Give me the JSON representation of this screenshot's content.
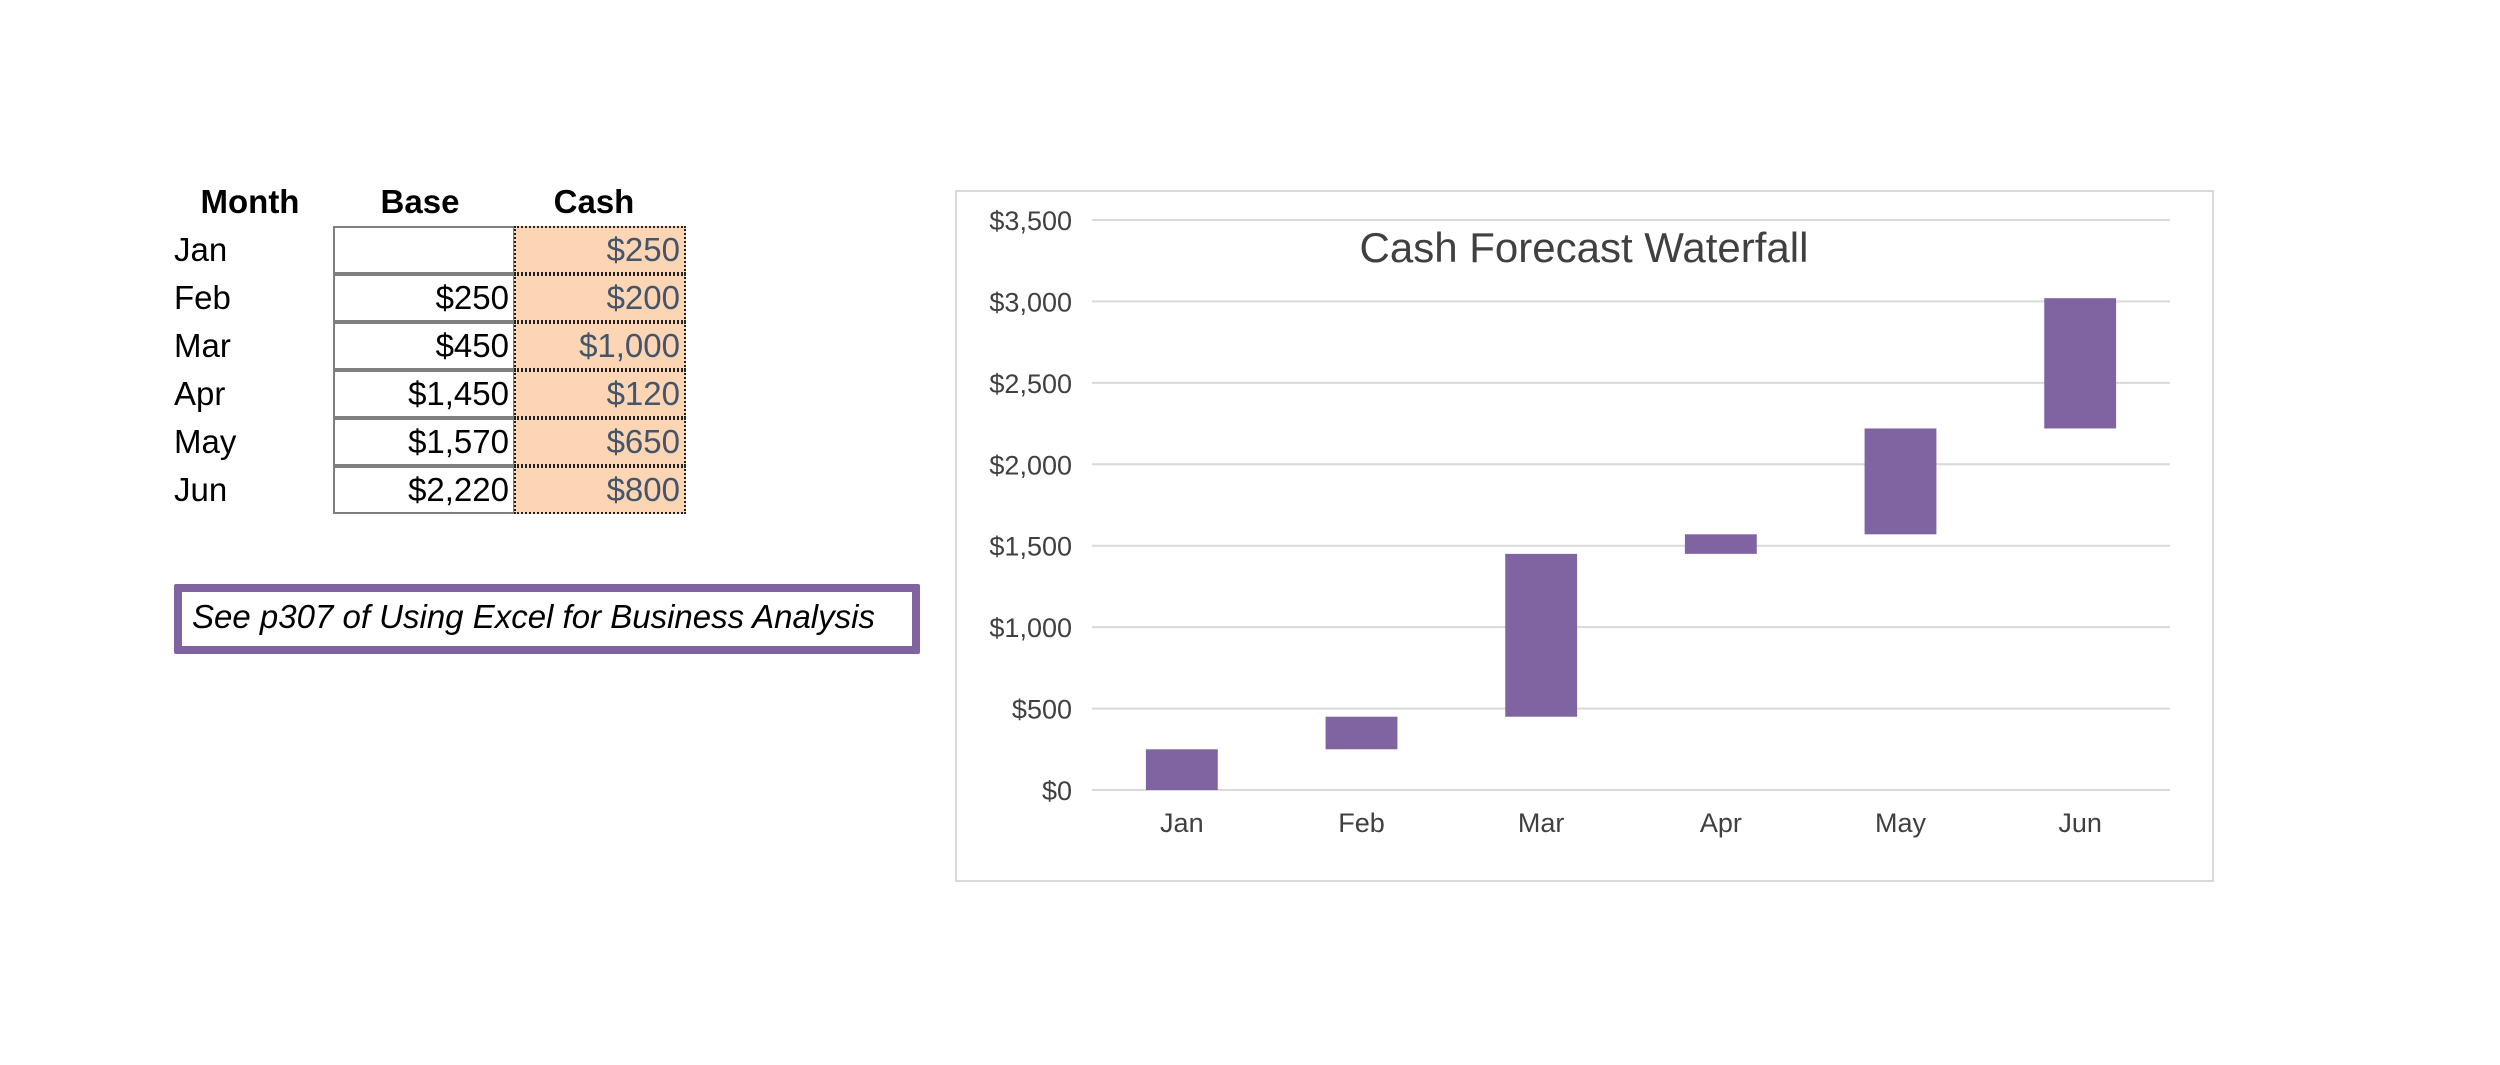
{
  "table": {
    "headers": {
      "month": "Month",
      "base": "Base",
      "cash": "Cash"
    },
    "rows": [
      {
        "month": "Jan",
        "base": "",
        "cash": "$250"
      },
      {
        "month": "Feb",
        "base": "$250",
        "cash": "$200"
      },
      {
        "month": "Mar",
        "base": "$450",
        "cash": "$1,000"
      },
      {
        "month": "Apr",
        "base": "$1,450",
        "cash": "$120"
      },
      {
        "month": "May",
        "base": "$1,570",
        "cash": "$650"
      },
      {
        "month": "Jun",
        "base": "$2,220",
        "cash": "$800"
      }
    ]
  },
  "note": {
    "text": "See p307 of Using Excel for Business Analysis"
  },
  "colors": {
    "bar": "#8064a2",
    "cash_fill": "#fcd5b4",
    "cash_text": "#44546a",
    "grid": "#d9d9d9"
  },
  "chart_data": {
    "type": "bar",
    "title": "Cash Forecast Waterfall",
    "xlabel": "",
    "ylabel": "",
    "categories": [
      "Jan",
      "Feb",
      "Mar",
      "Apr",
      "May",
      "Jun"
    ],
    "series": [
      {
        "base": [
          0,
          250,
          450,
          1450,
          1570,
          2220
        ]
      },
      {
        "values": [
          250,
          200,
          1000,
          120,
          650,
          800
        ]
      }
    ],
    "ylim": [
      0,
      3500
    ],
    "yticks": [
      0,
      500,
      1000,
      1500,
      2000,
      2500,
      3000,
      3500
    ],
    "ytick_labels": [
      "$0",
      "$500",
      "$1,000",
      "$1,500",
      "$2,000",
      "$2,500",
      "$3,000",
      "$3,500"
    ],
    "grid": true,
    "legend": "none",
    "stacked": true,
    "base_series_visible": false
  }
}
